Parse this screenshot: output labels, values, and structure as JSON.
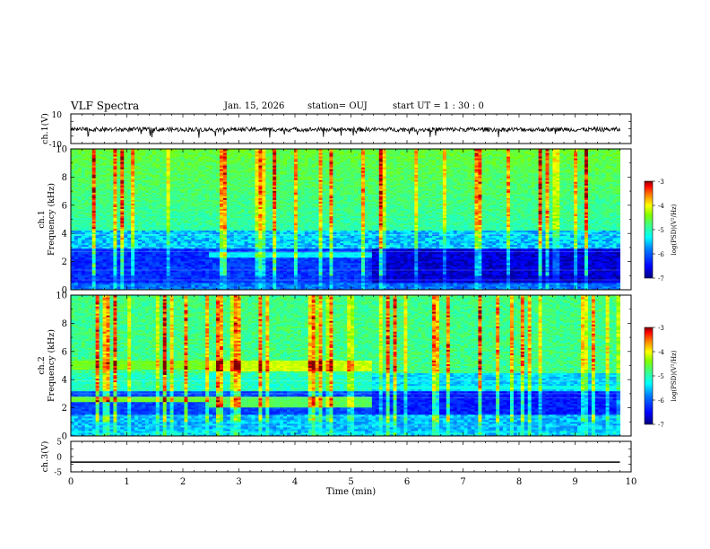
{
  "header": {
    "title": "VLF Spectra",
    "date": "Jan. 15, 2026",
    "station": "station= OUJ",
    "start": "start  UT =   1 : 30 : 0"
  },
  "colors": {
    "cmap": [
      "#00007f",
      "#0000ff",
      "#0080ff",
      "#00ffff",
      "#40ff80",
      "#80ff00",
      "#ffff00",
      "#ff8000",
      "#ff0000",
      "#800000"
    ]
  },
  "chart_data": [
    {
      "type": "line",
      "panel": "ch1-waveform",
      "ylabel": "ch.1(V)",
      "ylim": [
        -10,
        10
      ],
      "y_ticks": [
        "10",
        "-10"
      ],
      "xlim": [
        0,
        10
      ],
      "signal_range_mean": [
        -2,
        1
      ],
      "signal_end_min": 9.8
    },
    {
      "type": "heatmap",
      "panel": "ch1-spectrogram",
      "ylabel": "ch.1\nFrequency (kHz)",
      "ylim": [
        0,
        10
      ],
      "y_ticks": [
        "0",
        "2",
        "4",
        "6",
        "8",
        "10"
      ],
      "xlim": [
        0,
        10
      ],
      "data_end_min": 9.8,
      "segments": [
        {
          "t_start": 0.0,
          "t_end": 2.45,
          "low_band_khz": [
            1.0,
            3.0
          ],
          "level": 0.12
        },
        {
          "t_start": 2.45,
          "t_end": 5.35,
          "low_band_khz": [
            1.0,
            2.3
          ],
          "level": 0.14
        },
        {
          "t_start": 5.35,
          "t_end": 9.8,
          "low_band_khz": [
            1.0,
            3.0
          ],
          "level": 0.02
        }
      ],
      "colorbar": {
        "label": "log(PSD)(V²/Hz)",
        "range": [
          -7,
          -3
        ],
        "ticks": [
          "-3",
          "-4",
          "-5",
          "-6",
          "-7"
        ]
      }
    },
    {
      "type": "heatmap",
      "panel": "ch2-spectrogram",
      "ylabel": "ch.2\nFrequency (kHz)",
      "ylim": [
        0,
        10
      ],
      "y_ticks": [
        "0",
        "2",
        "4",
        "6",
        "8",
        "10"
      ],
      "xlim": [
        0,
        10
      ],
      "data_end_min": 9.8,
      "bands": [
        {
          "t_start": 0.0,
          "t_end": 2.45,
          "khz": [
            4.8,
            5.4
          ],
          "level": 0.6
        },
        {
          "t_start": 2.45,
          "t_end": 5.35,
          "khz": [
            4.6,
            5.4
          ],
          "level": 0.68
        },
        {
          "t_start": 0.0,
          "t_end": 2.45,
          "khz": [
            2.4,
            2.8
          ],
          "level": 0.58
        },
        {
          "t_start": 2.45,
          "t_end": 5.35,
          "khz": [
            2.0,
            2.8
          ],
          "level": 0.55
        }
      ],
      "colorbar": {
        "label": "log(PSD)(V²/Hz)",
        "range": [
          -7,
          -3
        ],
        "ticks": [
          "-3",
          "-4",
          "-5",
          "-6",
          "-7"
        ]
      }
    },
    {
      "type": "line",
      "panel": "ch3-waveform",
      "ylabel": "ch.3(V)",
      "ylim": [
        -5,
        5
      ],
      "y_ticks": [
        "5",
        "0",
        "-5"
      ],
      "value": -1.8,
      "xlim": [
        0,
        10
      ],
      "xlabel": "Time (min)",
      "x_ticks": [
        "0",
        "1",
        "2",
        "3",
        "4",
        "5",
        "6",
        "7",
        "8",
        "9",
        "10"
      ]
    }
  ]
}
